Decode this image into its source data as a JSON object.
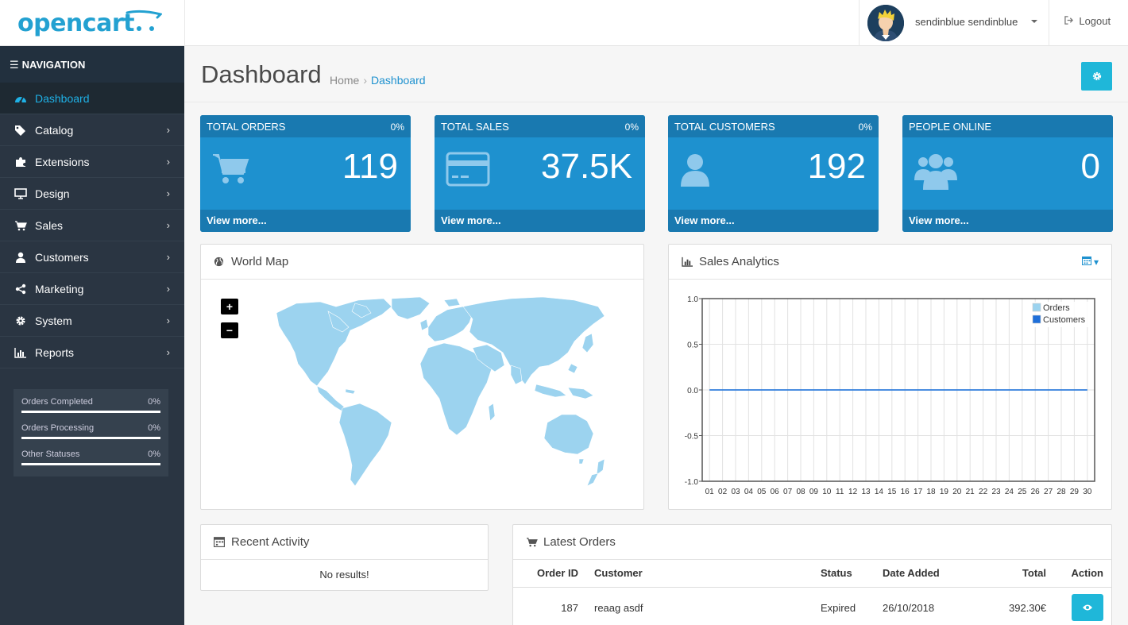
{
  "brand": {
    "logo_text": "opencart",
    "accent": "#1e91cf",
    "logo_color": "#23a1d1"
  },
  "header": {
    "user_name": "sendinblue sendinblue",
    "logout_label": "Logout",
    "logout_icon": "sign-out-icon"
  },
  "sidebar": {
    "heading": "NAVIGATION",
    "items": [
      {
        "label": "Dashboard",
        "icon": "dashboard-icon",
        "active": true
      },
      {
        "label": "Catalog",
        "icon": "tags-icon"
      },
      {
        "label": "Extensions",
        "icon": "puzzle-icon"
      },
      {
        "label": "Design",
        "icon": "monitor-icon"
      },
      {
        "label": "Sales",
        "icon": "cart-icon"
      },
      {
        "label": "Customers",
        "icon": "user-icon"
      },
      {
        "label": "Marketing",
        "icon": "share-icon"
      },
      {
        "label": "System",
        "icon": "gear-icon"
      },
      {
        "label": "Reports",
        "icon": "bar-chart-icon"
      }
    ],
    "statuses": [
      {
        "label": "Orders Completed",
        "value": "0%",
        "progress": 0
      },
      {
        "label": "Orders Processing",
        "value": "0%",
        "progress": 0
      },
      {
        "label": "Other Statuses",
        "value": "0%",
        "progress": 0
      }
    ]
  },
  "page": {
    "title": "Dashboard",
    "breadcrumb": [
      "Home",
      "Dashboard"
    ],
    "settings_icon": "gear-icon"
  },
  "tiles": [
    {
      "title": "TOTAL ORDERS",
      "percent": "0%",
      "value": "119",
      "icon": "shopping-cart-icon",
      "footer": "View more..."
    },
    {
      "title": "TOTAL SALES",
      "percent": "0%",
      "value": "37.5K",
      "icon": "credit-card-icon",
      "footer": "View more..."
    },
    {
      "title": "TOTAL CUSTOMERS",
      "percent": "0%",
      "value": "192",
      "icon": "user-icon",
      "footer": "View more..."
    },
    {
      "title": "PEOPLE ONLINE",
      "percent": "",
      "value": "0",
      "icon": "users-icon",
      "footer": "View more..."
    }
  ],
  "world_map": {
    "title": "World Map",
    "zoom_in": "+",
    "zoom_out": "−",
    "land_color": "#9cd3ef"
  },
  "analytics": {
    "title": "Sales Analytics",
    "calendar_icon": "calendar-icon"
  },
  "chart_data": {
    "type": "line",
    "title": "",
    "x": [
      "01",
      "02",
      "03",
      "04",
      "05",
      "06",
      "07",
      "08",
      "09",
      "10",
      "11",
      "12",
      "13",
      "14",
      "15",
      "16",
      "17",
      "18",
      "19",
      "20",
      "21",
      "22",
      "23",
      "24",
      "25",
      "26",
      "27",
      "28",
      "29",
      "30"
    ],
    "series": [
      {
        "name": "Orders",
        "color": "#9cd3ef",
        "values": [
          0,
          0,
          0,
          0,
          0,
          0,
          0,
          0,
          0,
          0,
          0,
          0,
          0,
          0,
          0,
          0,
          0,
          0,
          0,
          0,
          0,
          0,
          0,
          0,
          0,
          0,
          0,
          0,
          0,
          0
        ]
      },
      {
        "name": "Customers",
        "color": "#1e6fd9",
        "values": [
          0,
          0,
          0,
          0,
          0,
          0,
          0,
          0,
          0,
          0,
          0,
          0,
          0,
          0,
          0,
          0,
          0,
          0,
          0,
          0,
          0,
          0,
          0,
          0,
          0,
          0,
          0,
          0,
          0,
          0
        ]
      }
    ],
    "yticks": [
      "1.0",
      "0.5",
      "0.0",
      "-0.5",
      "-1.0"
    ],
    "ylim": [
      -1,
      1
    ],
    "grid": true,
    "legend": "top-right"
  },
  "activity": {
    "title": "Recent Activity",
    "empty": "No results!"
  },
  "orders": {
    "title": "Latest Orders",
    "columns": [
      "Order ID",
      "Customer",
      "Status",
      "Date Added",
      "Total",
      "Action"
    ],
    "rows": [
      {
        "id": "187",
        "customer": "reaag asdf",
        "status": "Expired",
        "date": "26/10/2018",
        "total": "392.30€"
      }
    ]
  }
}
